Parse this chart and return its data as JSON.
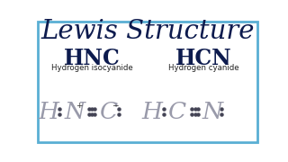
{
  "title": "Lewis Structure",
  "title_fontsize": 21,
  "title_color": "#0d1b4e",
  "bg_color": "#ffffff",
  "border_color": "#5aafd4",
  "border_lw": 2.0,
  "left_formula": "HNC",
  "left_name": "Hydrogen isocyanide",
  "right_formula": "HCN",
  "right_name": "Hydrogen cyanide",
  "formula_fontsize": 17,
  "formula_color": "#0d1b4e",
  "name_fontsize": 6.2,
  "name_color": "#222222",
  "lewis_color": "#999aaa",
  "lewis_fontsize": 19,
  "dot_size": 2.2,
  "dot_color": "#444455",
  "charge_fontsize": 6.5,
  "charge_color": "#333333"
}
